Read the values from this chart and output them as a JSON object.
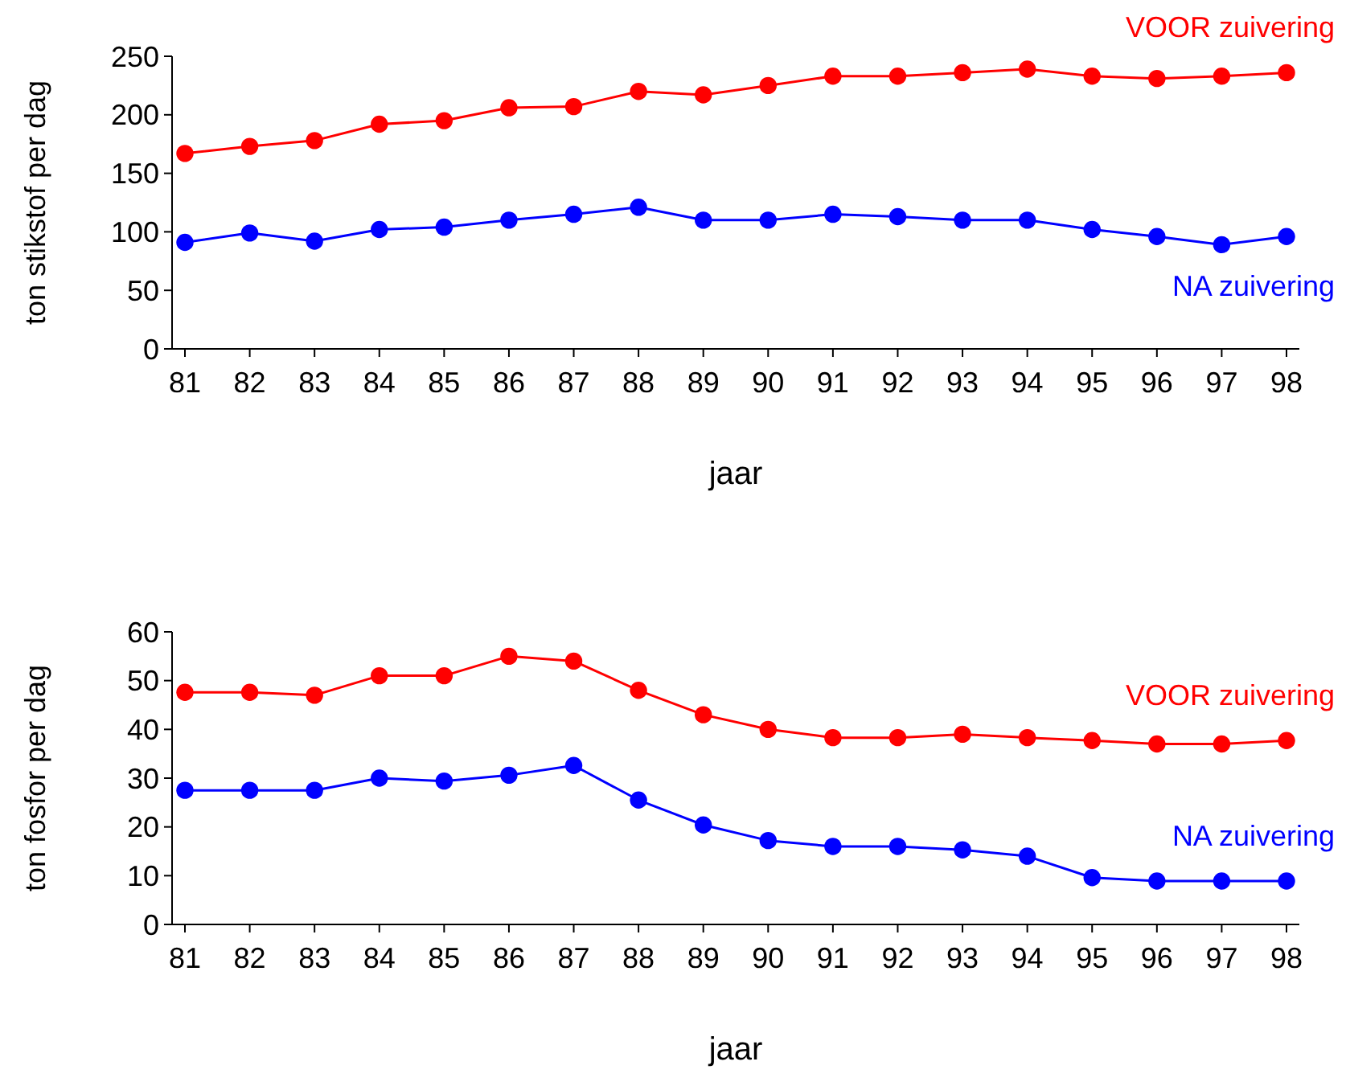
{
  "chart_data": [
    {
      "type": "line",
      "xlabel": "jaar",
      "ylabel": "ton stikstof per dag",
      "categories": [
        "81",
        "82",
        "83",
        "84",
        "85",
        "86",
        "87",
        "88",
        "89",
        "90",
        "91",
        "92",
        "93",
        "94",
        "95",
        "96",
        "97",
        "98"
      ],
      "ylim": [
        0,
        250
      ],
      "yticks": [
        0,
        50,
        100,
        150,
        200,
        250
      ],
      "grid": false,
      "legend": false,
      "marker": "circle",
      "line_style": "solid",
      "series": [
        {
          "name": "VOOR zuivering",
          "color": "#ff0000",
          "values": [
            167,
            173,
            178,
            192,
            195,
            206,
            207,
            220,
            217,
            225,
            233,
            233,
            236,
            239,
            233,
            231,
            233,
            236
          ]
        },
        {
          "name": "NA zuivering",
          "color": "#0000ff",
          "values": [
            91,
            99,
            92,
            102,
            104,
            110,
            115,
            121,
            110,
            110,
            115,
            113,
            110,
            110,
            102,
            96,
            89,
            96
          ]
        }
      ]
    },
    {
      "type": "line",
      "xlabel": "jaar",
      "ylabel": "ton fosfor per dag",
      "categories": [
        "81",
        "82",
        "83",
        "84",
        "85",
        "86",
        "87",
        "88",
        "89",
        "90",
        "91",
        "92",
        "93",
        "94",
        "95",
        "96",
        "97",
        "98"
      ],
      "ylim": [
        0,
        60
      ],
      "yticks": [
        0,
        10,
        20,
        30,
        40,
        50,
        60
      ],
      "grid": false,
      "legend": false,
      "marker": "circle",
      "line_style": "solid",
      "series": [
        {
          "name": "VOOR zuivering",
          "color": "#ff0000",
          "values": [
            47.6,
            47.6,
            47,
            51,
            51,
            55,
            54,
            48,
            43,
            40,
            38.3,
            38.3,
            39,
            38.3,
            37.7,
            37,
            37,
            37.7
          ]
        },
        {
          "name": "NA zuivering",
          "color": "#0000ff",
          "values": [
            27.5,
            27.5,
            27.5,
            30,
            29.4,
            30.6,
            32.6,
            25.5,
            20.4,
            17.2,
            16,
            16,
            15.3,
            14,
            9.6,
            8.9,
            8.9,
            8.9
          ]
        }
      ]
    }
  ]
}
